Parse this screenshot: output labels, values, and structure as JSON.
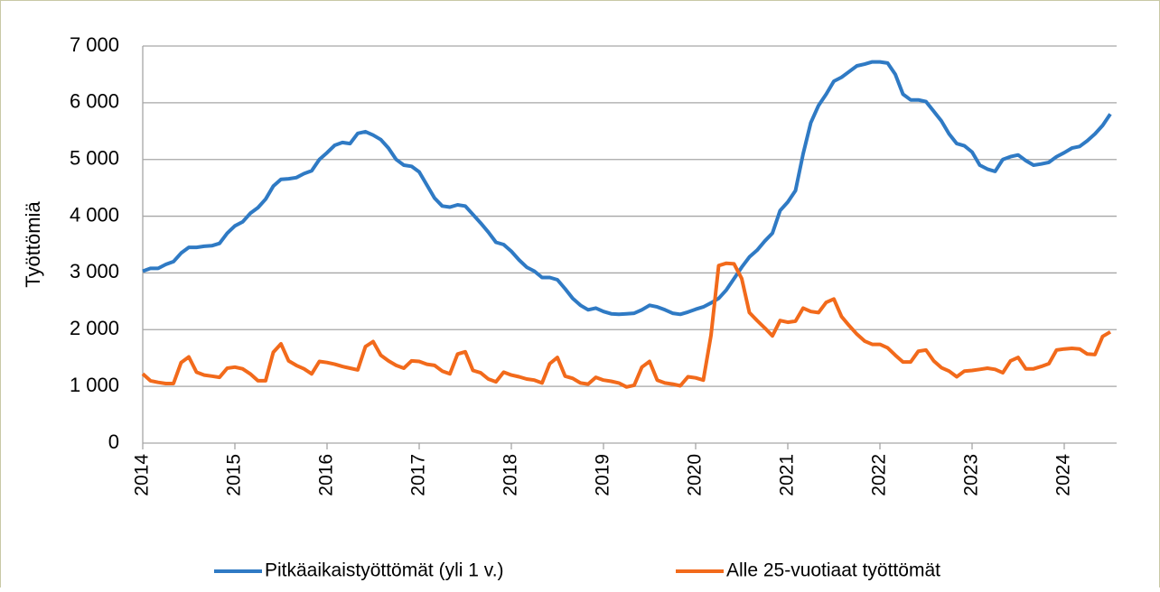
{
  "chart_data": {
    "type": "line",
    "ylabel": "Työttömiä",
    "categories": [
      "2014",
      null,
      null,
      null,
      null,
      null,
      null,
      null,
      null,
      null,
      null,
      null,
      "2015",
      null,
      null,
      null,
      null,
      null,
      null,
      null,
      null,
      null,
      null,
      null,
      "2016",
      null,
      null,
      null,
      null,
      null,
      null,
      null,
      null,
      null,
      null,
      null,
      "2017",
      null,
      null,
      null,
      null,
      null,
      null,
      null,
      null,
      null,
      null,
      null,
      "2018",
      null,
      null,
      null,
      null,
      null,
      null,
      null,
      null,
      null,
      null,
      null,
      "2019",
      null,
      null,
      null,
      null,
      null,
      null,
      null,
      null,
      null,
      null,
      null,
      "2020",
      null,
      null,
      null,
      null,
      null,
      null,
      null,
      null,
      null,
      null,
      null,
      "2021",
      null,
      null,
      null,
      null,
      null,
      null,
      null,
      null,
      null,
      null,
      null,
      "2022",
      null,
      null,
      null,
      null,
      null,
      null,
      null,
      null,
      null,
      null,
      null,
      "2023",
      null,
      null,
      null,
      null,
      null,
      null,
      null,
      null,
      null,
      null,
      null,
      "2024",
      null,
      null,
      null,
      null,
      null,
      null
    ],
    "series": [
      {
        "name": "Pitkäaikaistyöttömät (yli 1 v.)",
        "color": "#2f7ac4",
        "values": [
          3030,
          3080,
          3080,
          3150,
          3200,
          3350,
          3450,
          3450,
          3470,
          3480,
          3520,
          3700,
          3830,
          3900,
          4050,
          4150,
          4300,
          4530,
          4650,
          4660,
          4680,
          4750,
          4800,
          5000,
          5120,
          5250,
          5300,
          5280,
          5460,
          5490,
          5430,
          5350,
          5200,
          5000,
          4900,
          4880,
          4780,
          4550,
          4320,
          4180,
          4160,
          4200,
          4180,
          4030,
          3880,
          3720,
          3540,
          3500,
          3380,
          3230,
          3100,
          3030,
          2920,
          2920,
          2880,
          2720,
          2550,
          2430,
          2350,
          2380,
          2320,
          2280,
          2270,
          2280,
          2290,
          2350,
          2430,
          2400,
          2350,
          2290,
          2270,
          2310,
          2360,
          2400,
          2470,
          2550,
          2700,
          2900,
          3100,
          3280,
          3400,
          3560,
          3700,
          4100,
          4250,
          4450,
          5100,
          5650,
          5950,
          6150,
          6380,
          6450,
          6550,
          6650,
          6680,
          6720,
          6720,
          6700,
          6500,
          6150,
          6050,
          6050,
          6020,
          5850,
          5680,
          5450,
          5280,
          5240,
          5130,
          4900,
          4830,
          4790,
          5000,
          5050,
          5080,
          4980,
          4900,
          4920,
          4950,
          5050,
          5120,
          5200,
          5230,
          5330,
          5450,
          5600,
          5800
        ]
      },
      {
        "name": "Alle 25-vuotiaat työttömät",
        "color": "#f26a1b",
        "values": [
          1220,
          1100,
          1070,
          1050,
          1050,
          1420,
          1520,
          1250,
          1200,
          1180,
          1160,
          1320,
          1340,
          1310,
          1220,
          1100,
          1100,
          1600,
          1750,
          1450,
          1370,
          1310,
          1220,
          1440,
          1420,
          1390,
          1350,
          1320,
          1290,
          1700,
          1790,
          1550,
          1450,
          1370,
          1320,
          1450,
          1440,
          1390,
          1370,
          1270,
          1220,
          1570,
          1610,
          1280,
          1240,
          1130,
          1080,
          1250,
          1200,
          1170,
          1130,
          1110,
          1060,
          1400,
          1510,
          1180,
          1140,
          1060,
          1040,
          1160,
          1110,
          1090,
          1060,
          990,
          1020,
          1340,
          1440,
          1110,
          1060,
          1040,
          1010,
          1170,
          1150,
          1110,
          1900,
          3130,
          3170,
          3160,
          2900,
          2300,
          2160,
          2030,
          1890,
          2160,
          2130,
          2150,
          2380,
          2320,
          2300,
          2480,
          2540,
          2230,
          2070,
          1920,
          1800,
          1740,
          1740,
          1680,
          1550,
          1430,
          1430,
          1620,
          1640,
          1450,
          1330,
          1270,
          1170,
          1270,
          1280,
          1300,
          1320,
          1300,
          1240,
          1450,
          1510,
          1310,
          1310,
          1350,
          1400,
          1640,
          1660,
          1670,
          1660,
          1570,
          1560,
          1880,
          1960
        ]
      }
    ],
    "ylim": [
      0,
      7000
    ],
    "yticks": [
      0,
      {
        "value": 1000,
        "label": "1 000"
      },
      {
        "value": 2000,
        "label": "2 000"
      },
      {
        "value": 3000,
        "label": "3 000"
      },
      {
        "value": 4000,
        "label": "4 000"
      },
      {
        "value": 5000,
        "label": "5 000"
      },
      {
        "value": 6000,
        "label": "6 000"
      },
      {
        "value": 7000,
        "label": "7 000"
      }
    ],
    "grid": true,
    "legend": "bottom"
  }
}
